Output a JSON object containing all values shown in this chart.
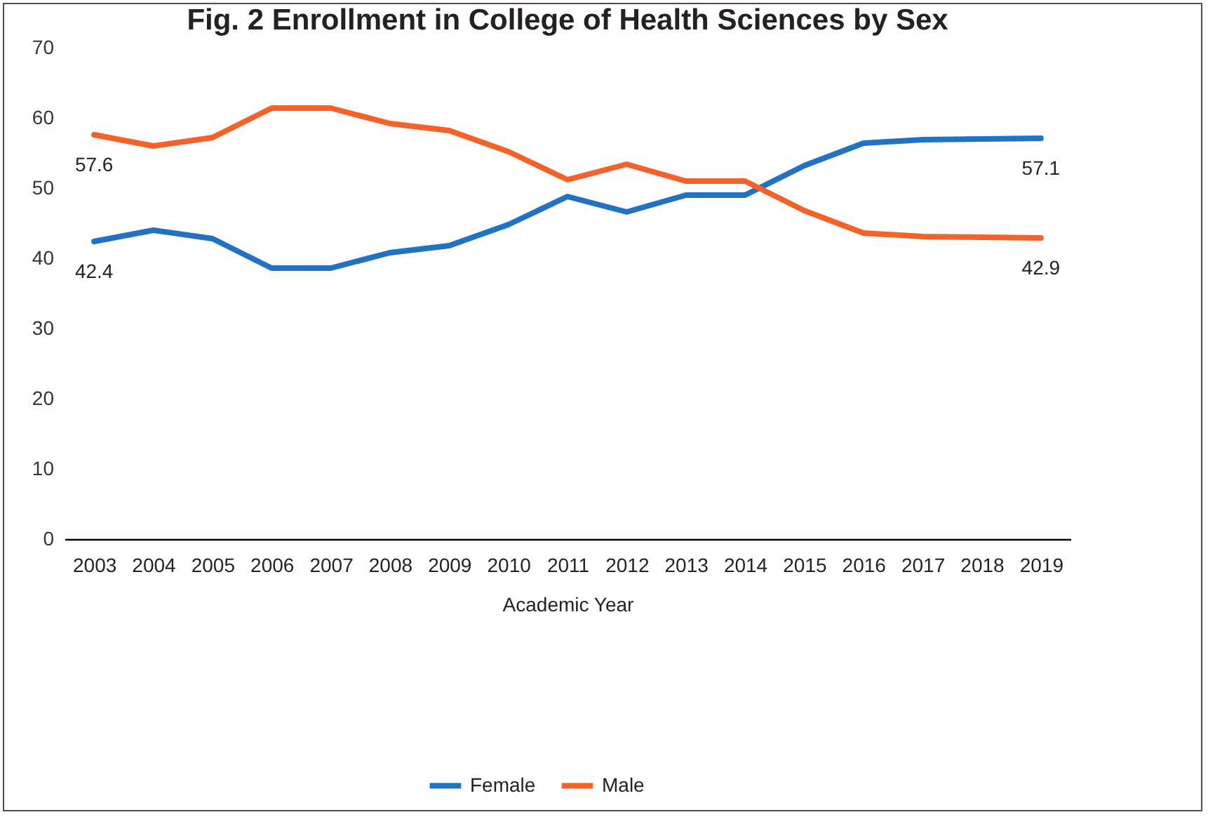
{
  "chart_data": {
    "type": "line",
    "title": "Fig. 2 Enrollment in College of Health Sciences by Sex",
    "xlabel": "Academic Year",
    "categories": [
      "2003",
      "2004",
      "2005",
      "2006",
      "2007",
      "2008",
      "2009",
      "2010",
      "2011",
      "2012",
      "2013",
      "2014",
      "2015",
      "2016",
      "2017",
      "2018",
      "2019"
    ],
    "series": [
      {
        "name": "Female",
        "color": "#2272c3",
        "values": [
          42.4,
          44.0,
          42.8,
          38.6,
          38.6,
          40.8,
          41.8,
          44.8,
          48.8,
          46.6,
          49.0,
          49.0,
          53.2,
          56.4,
          56.9,
          57.0,
          57.1
        ],
        "value_labels": [
          "42.4",
          null,
          null,
          null,
          null,
          null,
          null,
          null,
          null,
          null,
          null,
          null,
          null,
          null,
          null,
          null,
          "57.1"
        ]
      },
      {
        "name": "Male",
        "color": "#f4622a",
        "values": [
          57.6,
          56.0,
          57.2,
          61.4,
          61.4,
          59.2,
          58.2,
          55.2,
          51.2,
          53.4,
          51.0,
          51.0,
          46.8,
          43.6,
          43.1,
          43.0,
          42.9
        ],
        "value_labels": [
          "57.6",
          null,
          null,
          null,
          null,
          null,
          null,
          null,
          null,
          null,
          null,
          null,
          null,
          null,
          null,
          null,
          "42.9"
        ]
      }
    ],
    "ylim": [
      0,
      70
    ],
    "yticks": [
      0,
      10,
      20,
      30,
      40,
      50,
      60,
      70
    ],
    "grid": false,
    "legend": "bottom",
    "marker": "none",
    "line_style": "solid"
  }
}
